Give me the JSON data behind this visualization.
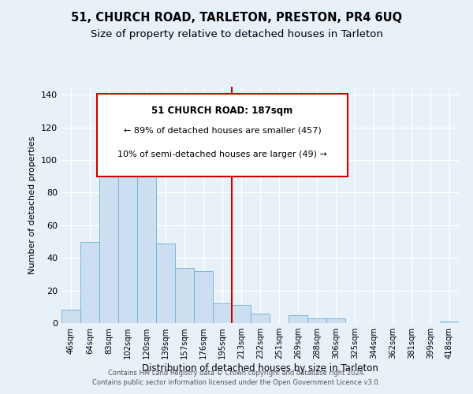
{
  "title": "51, CHURCH ROAD, TARLETON, PRESTON, PR4 6UQ",
  "subtitle": "Size of property relative to detached houses in Tarleton",
  "xlabel": "Distribution of detached houses by size in Tarleton",
  "ylabel": "Number of detached properties",
  "bar_labels": [
    "46sqm",
    "64sqm",
    "83sqm",
    "102sqm",
    "120sqm",
    "139sqm",
    "157sqm",
    "176sqm",
    "195sqm",
    "213sqm",
    "232sqm",
    "251sqm",
    "269sqm",
    "288sqm",
    "306sqm",
    "325sqm",
    "344sqm",
    "362sqm",
    "381sqm",
    "399sqm",
    "418sqm"
  ],
  "bar_values": [
    8,
    50,
    93,
    97,
    113,
    49,
    34,
    32,
    12,
    11,
    6,
    0,
    5,
    3,
    3,
    0,
    0,
    0,
    0,
    0,
    1
  ],
  "bar_color": "#ccdff0",
  "bar_edge_color": "#6baed6",
  "vline_x": 8.5,
  "vline_color": "#cc0000",
  "annotation_title": "51 CHURCH ROAD: 187sqm",
  "annotation_line1": "← 89% of detached houses are smaller (457)",
  "annotation_line2": "10% of semi-detached houses are larger (49) →",
  "annotation_box_color": "#ffffff",
  "annotation_box_edge": "#cc0000",
  "ylim": [
    0,
    145
  ],
  "yticks": [
    0,
    20,
    40,
    60,
    80,
    100,
    120,
    140
  ],
  "footnote1": "Contains HM Land Registry data © Crown copyright and database right 2024.",
  "footnote2": "Contains public sector information licensed under the Open Government Licence v3.0.",
  "background_color": "#e8f0f8",
  "grid_color": "#ffffff",
  "title_fontsize": 10.5,
  "subtitle_fontsize": 9.5
}
